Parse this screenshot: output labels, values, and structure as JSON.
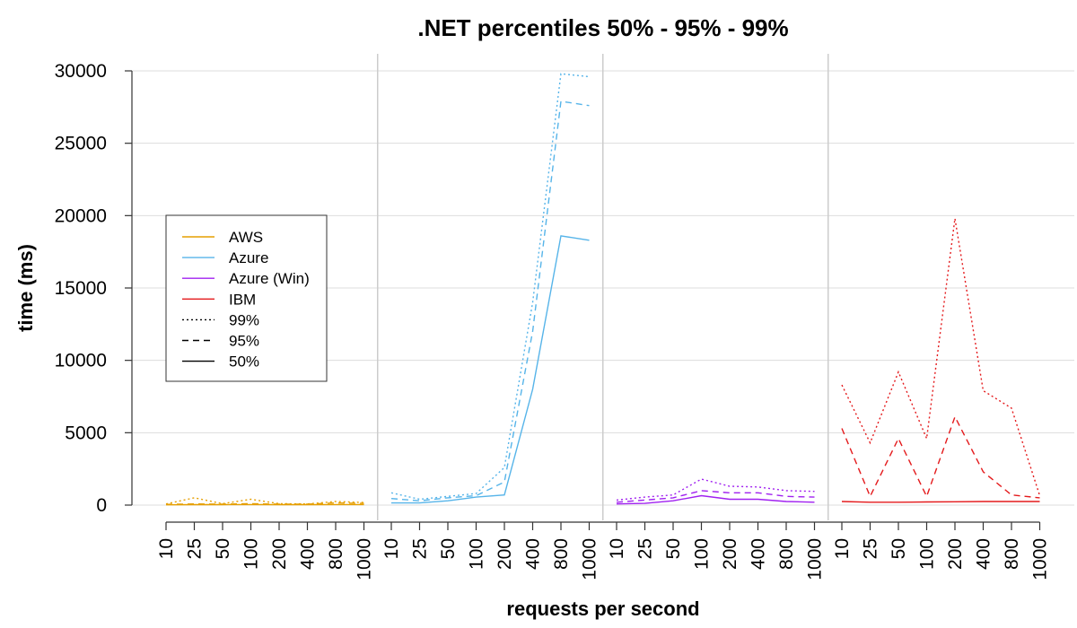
{
  "chart_data": {
    "type": "line",
    "title": ".NET percentiles 50% - 95% - 99%",
    "xlabel": "requests per second",
    "ylabel": "time (ms)",
    "ylim": [
      0,
      30000
    ],
    "yticks": [
      0,
      5000,
      10000,
      15000,
      20000,
      25000,
      30000
    ],
    "categories": [
      "10",
      "25",
      "50",
      "100",
      "200",
      "400",
      "800",
      "1000"
    ],
    "grid": true,
    "legend_position": "left",
    "legend": [
      {
        "label": "AWS",
        "kind": "color",
        "color": "#e69f00"
      },
      {
        "label": "Azure",
        "kind": "color",
        "color": "#56b4e9"
      },
      {
        "label": "Azure (Win)",
        "kind": "color",
        "color": "#a020f0"
      },
      {
        "label": "IBM",
        "kind": "color",
        "color": "#e41a1c"
      },
      {
        "label": "99%",
        "kind": "dash",
        "dash": "dotted"
      },
      {
        "label": "95%",
        "kind": "dash",
        "dash": "dashed"
      },
      {
        "label": "50%",
        "kind": "dash",
        "dash": "solid"
      }
    ],
    "panels": [
      {
        "provider": "AWS",
        "color": "#e69f00",
        "series": [
          {
            "percentile": "99%",
            "dash": "dotted",
            "values": [
              80,
              500,
              100,
              400,
              100,
              80,
              250,
              180
            ]
          },
          {
            "percentile": "95%",
            "dash": "dashed",
            "values": [
              50,
              80,
              60,
              100,
              60,
              60,
              150,
              120
            ]
          },
          {
            "percentile": "50%",
            "dash": "solid",
            "values": [
              20,
              30,
              30,
              40,
              30,
              30,
              40,
              40
            ]
          }
        ]
      },
      {
        "provider": "Azure",
        "color": "#56b4e9",
        "series": [
          {
            "percentile": "99%",
            "dash": "dotted",
            "values": [
              850,
              400,
              600,
              800,
              2600,
              14000,
              29800,
              29600
            ]
          },
          {
            "percentile": "95%",
            "dash": "dashed",
            "values": [
              450,
              300,
              500,
              650,
              1600,
              12000,
              27900,
              27600
            ]
          },
          {
            "percentile": "50%",
            "dash": "solid",
            "values": [
              150,
              150,
              300,
              550,
              700,
              8000,
              18600,
              18300
            ]
          }
        ]
      },
      {
        "provider": "Azure (Win)",
        "color": "#a020f0",
        "series": [
          {
            "percentile": "99%",
            "dash": "dotted",
            "values": [
              350,
              550,
              700,
              1800,
              1300,
              1250,
              1000,
              950
            ]
          },
          {
            "percentile": "95%",
            "dash": "dashed",
            "values": [
              200,
              350,
              500,
              1000,
              850,
              850,
              600,
              550
            ]
          },
          {
            "percentile": "50%",
            "dash": "solid",
            "values": [
              80,
              120,
              300,
              650,
              400,
              400,
              250,
              200
            ]
          }
        ]
      },
      {
        "provider": "IBM",
        "color": "#e41a1c",
        "series": [
          {
            "percentile": "99%",
            "dash": "dotted",
            "values": [
              8300,
              4300,
              9200,
              4600,
              19800,
              7900,
              6700,
              650
            ]
          },
          {
            "percentile": "95%",
            "dash": "dashed",
            "values": [
              5300,
              600,
              4600,
              600,
              6100,
              2300,
              700,
              500
            ]
          },
          {
            "percentile": "50%",
            "dash": "solid",
            "values": [
              250,
              200,
              200,
              220,
              230,
              250,
              250,
              250
            ]
          }
        ]
      }
    ]
  }
}
